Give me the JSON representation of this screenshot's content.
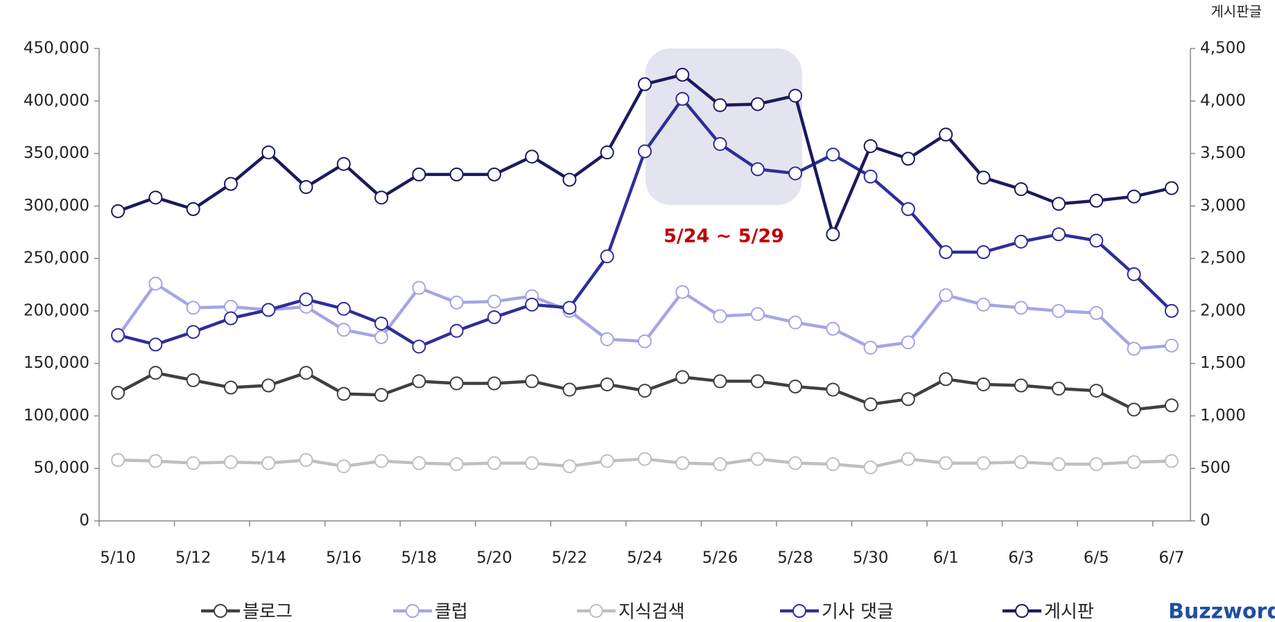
{
  "chart_data": {
    "type": "line",
    "y2_label": "게시판글",
    "annotation": "5/24 ~ 5/29",
    "logo": "Buzzword",
    "categories": [
      "5/10",
      null,
      "5/12",
      null,
      "5/14",
      null,
      "5/16",
      null,
      "5/18",
      null,
      "5/20",
      null,
      "5/22",
      null,
      "5/24",
      null,
      "5/26",
      null,
      "5/28",
      null,
      "5/30",
      null,
      "6/1",
      null,
      "6/3",
      null,
      "6/5",
      null,
      "6/7"
    ],
    "ylim": [
      0,
      450000
    ],
    "yticks": [
      0,
      {
        "value": 50000,
        "label": "50,000"
      },
      {
        "value": 100000,
        "label": "100,000"
      },
      {
        "value": 150000,
        "label": "150,000"
      },
      {
        "value": 200000,
        "label": "200,000"
      },
      {
        "value": 250000,
        "label": "250,000"
      },
      {
        "value": 300000,
        "label": "300,000"
      },
      {
        "value": 350000,
        "label": "350,000"
      },
      {
        "value": 400000,
        "label": "400,000"
      },
      {
        "value": 450000,
        "label": "450,000"
      }
    ],
    "y2lim": [
      0,
      4500
    ],
    "y2ticks": [
      0,
      500,
      {
        "value": 1000,
        "label": "1,000"
      },
      {
        "value": 1500,
        "label": "1,500"
      },
      {
        "value": 2000,
        "label": "2,000"
      },
      {
        "value": 2500,
        "label": "2,500"
      },
      {
        "value": 3000,
        "label": "3,000"
      },
      {
        "value": 3500,
        "label": "3,500"
      },
      {
        "value": 4000,
        "label": "4,000"
      },
      {
        "value": 4500,
        "label": "4,500"
      }
    ],
    "legend": "bottom",
    "series": [
      {
        "name": "블로그",
        "color": "#404040",
        "values": [
          122000,
          141000,
          134000,
          127000,
          129000,
          141000,
          121000,
          120000,
          133000,
          131000,
          131000,
          133000,
          125000,
          130000,
          124000,
          137000,
          133000,
          133000,
          128000,
          125000,
          111000,
          116000,
          135000,
          130000,
          129000,
          126000,
          124000,
          106000,
          110000
        ]
      },
      {
        "name": "클럽",
        "color": "#a5a5e6",
        "values": [
          176000,
          226000,
          203000,
          204000,
          201000,
          204000,
          182000,
          175000,
          222000,
          208000,
          209000,
          214000,
          200000,
          173000,
          171000,
          218000,
          195000,
          197000,
          189000,
          183000,
          165000,
          170000,
          215000,
          206000,
          203000,
          200000,
          198000,
          164000,
          167000
        ]
      },
      {
        "name": "지식검색",
        "color": "#bfbfbf",
        "values": [
          58000,
          57000,
          55000,
          56000,
          55000,
          58000,
          52000,
          57000,
          55000,
          54000,
          55000,
          55000,
          52000,
          57000,
          59000,
          55000,
          54000,
          59000,
          55000,
          54000,
          51000,
          59000,
          55000,
          55000,
          56000,
          54000,
          54000,
          56000,
          57000
        ]
      },
      {
        "name": "기사 댓글",
        "color": "#2e2e9a",
        "values": [
          177000,
          168000,
          180000,
          193000,
          201000,
          211000,
          202000,
          188000,
          166000,
          181000,
          194000,
          206000,
          203000,
          252000,
          352000,
          402000,
          359000,
          335000,
          331000,
          349000,
          328000,
          297000,
          256000,
          256000,
          266000,
          273000,
          267000,
          235000,
          200000
        ]
      },
      {
        "name": "게시판",
        "color": "#1a1a5e",
        "axis": "y2",
        "values": [
          2950,
          3080,
          2970,
          3210,
          3510,
          3180,
          3400,
          3080,
          3300,
          3300,
          3300,
          3470,
          3250,
          3510,
          4160,
          4250,
          3960,
          3970,
          4050,
          2730,
          3570,
          3450,
          3680,
          3270,
          3160,
          3020,
          3050,
          3090,
          3170
        ]
      }
    ]
  }
}
